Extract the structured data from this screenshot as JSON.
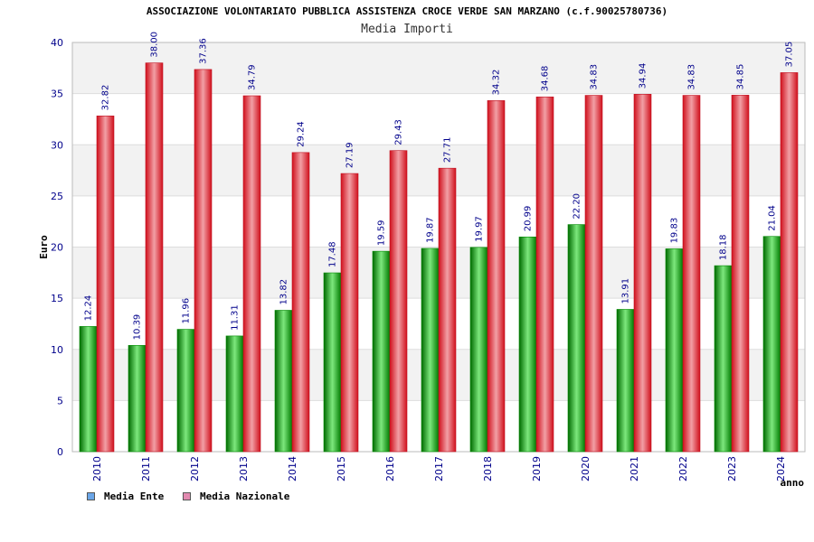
{
  "chart_data": {
    "type": "bar",
    "title": "ASSOCIAZIONE VOLONTARIATO PUBBLICA ASSISTENZA CROCE VERDE SAN MARZANO (c.f.90025780736)",
    "subtitle": "Media Importi",
    "xlabel": "anno",
    "ylabel": "Euro",
    "ylim": [
      0,
      40
    ],
    "yticks": [
      0,
      5,
      10,
      15,
      20,
      25,
      30,
      35,
      40
    ],
    "grid": true,
    "legend_position": "bottom-left",
    "categories": [
      "2010",
      "2011",
      "2012",
      "2013",
      "2014",
      "2015",
      "2016",
      "2017",
      "2018",
      "2019",
      "2020",
      "2021",
      "2022",
      "2023",
      "2024"
    ],
    "series": [
      {
        "name": "Media Ente",
        "values": [
          12.24,
          10.39,
          11.96,
          11.31,
          13.82,
          17.48,
          19.59,
          19.87,
          19.97,
          20.99,
          22.2,
          13.91,
          19.83,
          18.18,
          21.04
        ],
        "labels": [
          "12.24",
          "10.39",
          "11.96",
          "11.31",
          "13.82",
          "17.48",
          "19.59",
          "19.87",
          "19.97",
          "20.99",
          "22.20",
          "13.91",
          "19.83",
          "18.18",
          "21.04"
        ],
        "bar_color": "#00b000",
        "legend_color": "#6ba6e8"
      },
      {
        "name": "Media Nazionale",
        "values": [
          32.82,
          38.0,
          37.36,
          34.79,
          29.24,
          27.19,
          29.43,
          27.71,
          34.32,
          34.68,
          34.83,
          34.94,
          34.83,
          34.85,
          37.05
        ],
        "labels": [
          "32.82",
          "38.00",
          "37.36",
          "34.79",
          "29.24",
          "27.19",
          "29.43",
          "27.71",
          "34.32",
          "34.68",
          "34.83",
          "34.94",
          "34.83",
          "34.85",
          "37.05"
        ],
        "bar_color": "#e8101e",
        "legend_color": "#e28ab0"
      }
    ]
  }
}
